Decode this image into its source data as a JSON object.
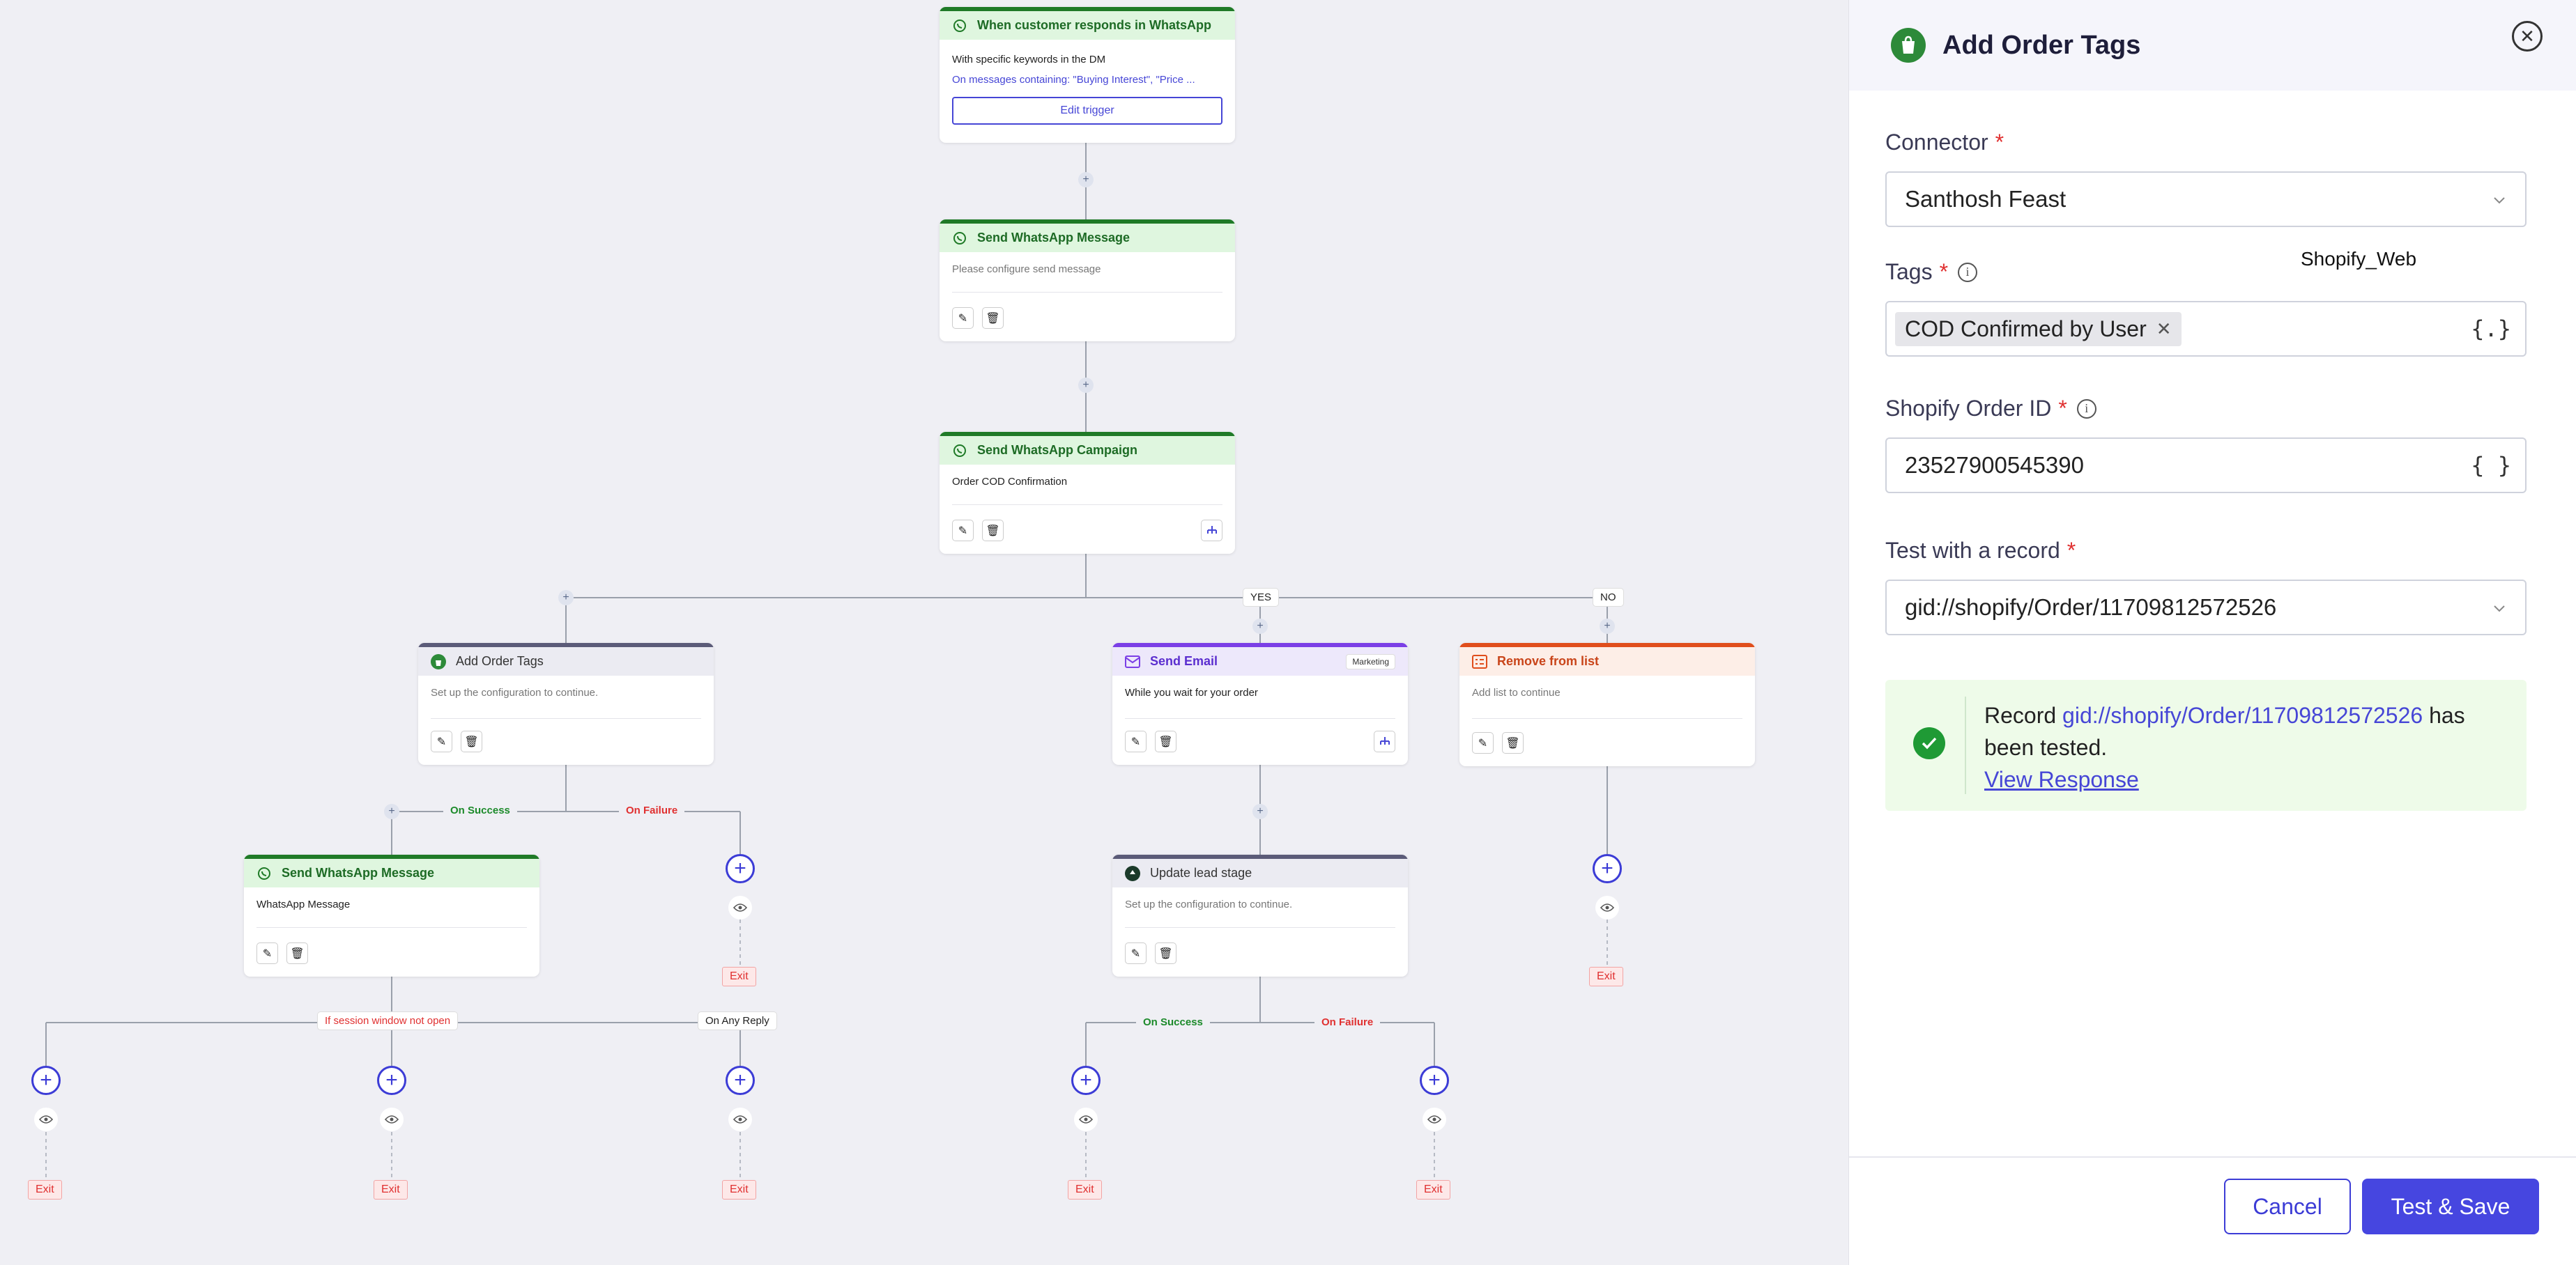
{
  "nodes": {
    "trigger": {
      "title": "When customer responds in WhatsApp",
      "line1": "With specific keywords in the DM",
      "line2": "On messages containing: \"Buying Interest\", \"Price ...",
      "edit": "Edit trigger"
    },
    "send_msg": {
      "title": "Send WhatsApp Message",
      "body": "Please configure send message"
    },
    "campaign": {
      "title": "Send WhatsApp Campaign",
      "body": "Order COD Confirmation"
    },
    "add_tags": {
      "title": "Add Order Tags",
      "body": "Set up the configuration to continue."
    },
    "send_email": {
      "title": "Send Email",
      "badge": "Marketing",
      "body": "While you wait for your order"
    },
    "remove_list": {
      "title": "Remove from list",
      "body": "Add list to continue"
    },
    "send_msg2": {
      "title": "Send WhatsApp Message",
      "body": "WhatsApp Message"
    },
    "update_lead": {
      "title": "Update lead stage",
      "body": "Set up the configuration to continue."
    }
  },
  "branches": {
    "yes": "YES",
    "no": "NO",
    "on_success": "On Success",
    "on_failure": "On Failure",
    "session": "If session window not open",
    "any_reply": "On Any Reply"
  },
  "exit_label": "Exit",
  "panel": {
    "title": "Add Order Tags",
    "connector": {
      "label": "Connector",
      "value": "Santhosh Feast"
    },
    "floating_note": "Shopify_Web",
    "tags": {
      "label": "Tags",
      "chip": "COD Confirmed by User",
      "braces": "{.}"
    },
    "order_id": {
      "label": "Shopify Order ID",
      "value": "23527900545390",
      "braces": "{ }"
    },
    "test_record": {
      "label": "Test with a record",
      "value": "gid://shopify/Order/11709812572526"
    },
    "success": {
      "prefix": "Record",
      "link": "gid://shopify/Order/11709812572526",
      "suffix": "has been tested.",
      "view": "View Response"
    },
    "cancel": "Cancel",
    "save": "Test & Save"
  },
  "colors": {
    "accent": "#4646e0",
    "success": "#1f9a35",
    "danger": "#e03030",
    "whatsapp": "#1f7a27"
  }
}
